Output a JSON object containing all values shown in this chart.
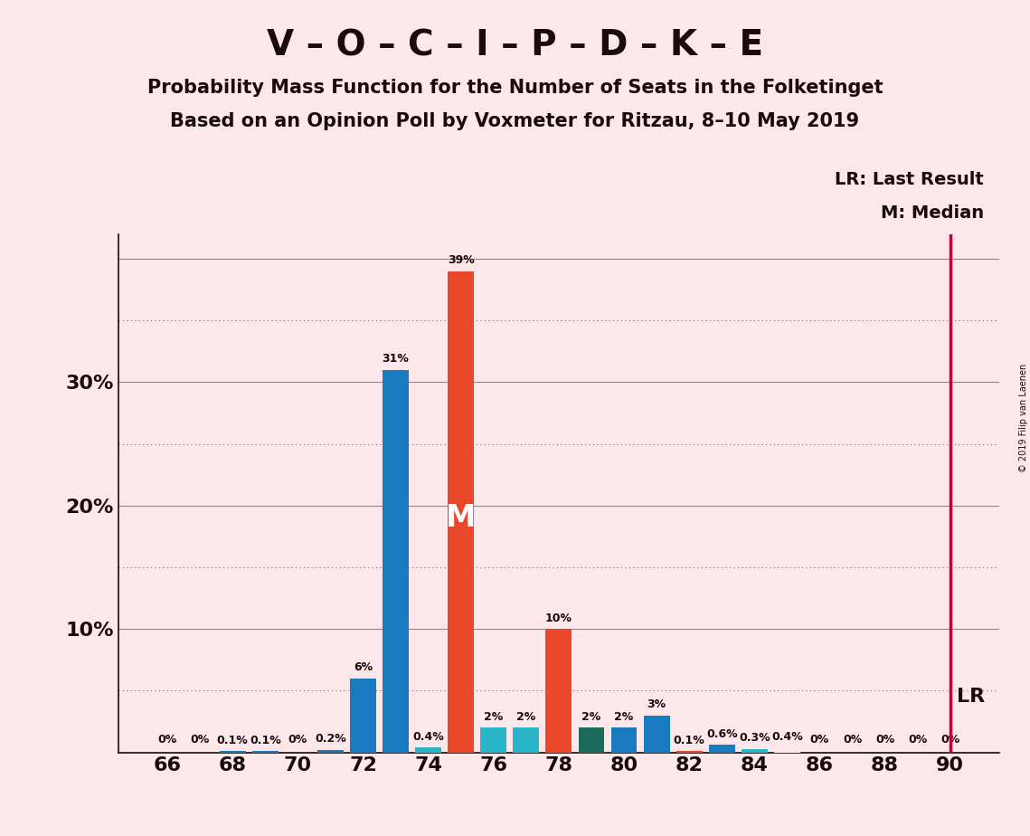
{
  "title_main": "V – O – C – I – P – D – K – E",
  "title_sub1": "Probability Mass Function for the Number of Seats in the Folketinget",
  "title_sub2": "Based on an Opinion Poll by Voxmeter for Ritzau, 8–10 May 2019",
  "copyright": "© 2019 Filip van Laenen",
  "background_color": "#fce8ea",
  "seats": [
    66,
    67,
    68,
    69,
    70,
    71,
    72,
    73,
    74,
    75,
    76,
    77,
    78,
    79,
    80,
    81,
    82,
    83,
    84,
    85,
    86,
    87,
    88,
    89,
    90
  ],
  "probabilities": [
    0.0,
    0.0,
    0.1,
    0.1,
    0.0,
    0.2,
    6.0,
    31.0,
    0.4,
    39.0,
    2.0,
    2.0,
    10.0,
    2.0,
    2.0,
    3.0,
    0.1,
    0.6,
    0.3,
    0.4,
    0.0,
    0.0,
    0.0,
    0.0,
    0.0
  ],
  "labels": [
    "0%",
    "0%",
    "0.1%",
    "0.1%",
    "0%",
    "0.2%",
    "6%",
    "31%",
    "0.4%",
    "39%",
    "2%",
    "2%",
    "10%",
    "2%",
    "2%",
    "3%",
    "0.1%",
    "0.6%",
    "0.3%",
    "0.4%",
    "0%",
    "0%",
    "0%",
    "0%",
    "0%"
  ],
  "bar_colors": [
    "#fce8ea",
    "#fce8ea",
    "#1a7abf",
    "#1a7abf",
    "#fce8ea",
    "#1a7abf",
    "#1a7abf",
    "#1a7abf",
    "#2ab5c8",
    "#e8472a",
    "#2ab5c8",
    "#2ab5c8",
    "#e8472a",
    "#1a6b5a",
    "#1a7abf",
    "#1a7abf",
    "#e8472a",
    "#1a7abf",
    "#2ab5c8",
    "#fce8ea",
    "#fce8ea",
    "#fce8ea",
    "#fce8ea",
    "#fce8ea",
    "#fce8ea"
  ],
  "median_seat": 75,
  "lr_seat": 90,
  "lr_label": "LR",
  "median_label": "M",
  "ylim_max": 42,
  "major_gridlines": [
    10,
    20,
    30,
    40
  ],
  "minor_gridlines": [
    5,
    15,
    25,
    35
  ],
  "bar_width": 0.8,
  "lr_color": "#c0003c",
  "text_color": "#1a0a0a",
  "axis_color": "#1a0a0a",
  "legend_lr": "LR: Last Result",
  "legend_m": "M: Median"
}
